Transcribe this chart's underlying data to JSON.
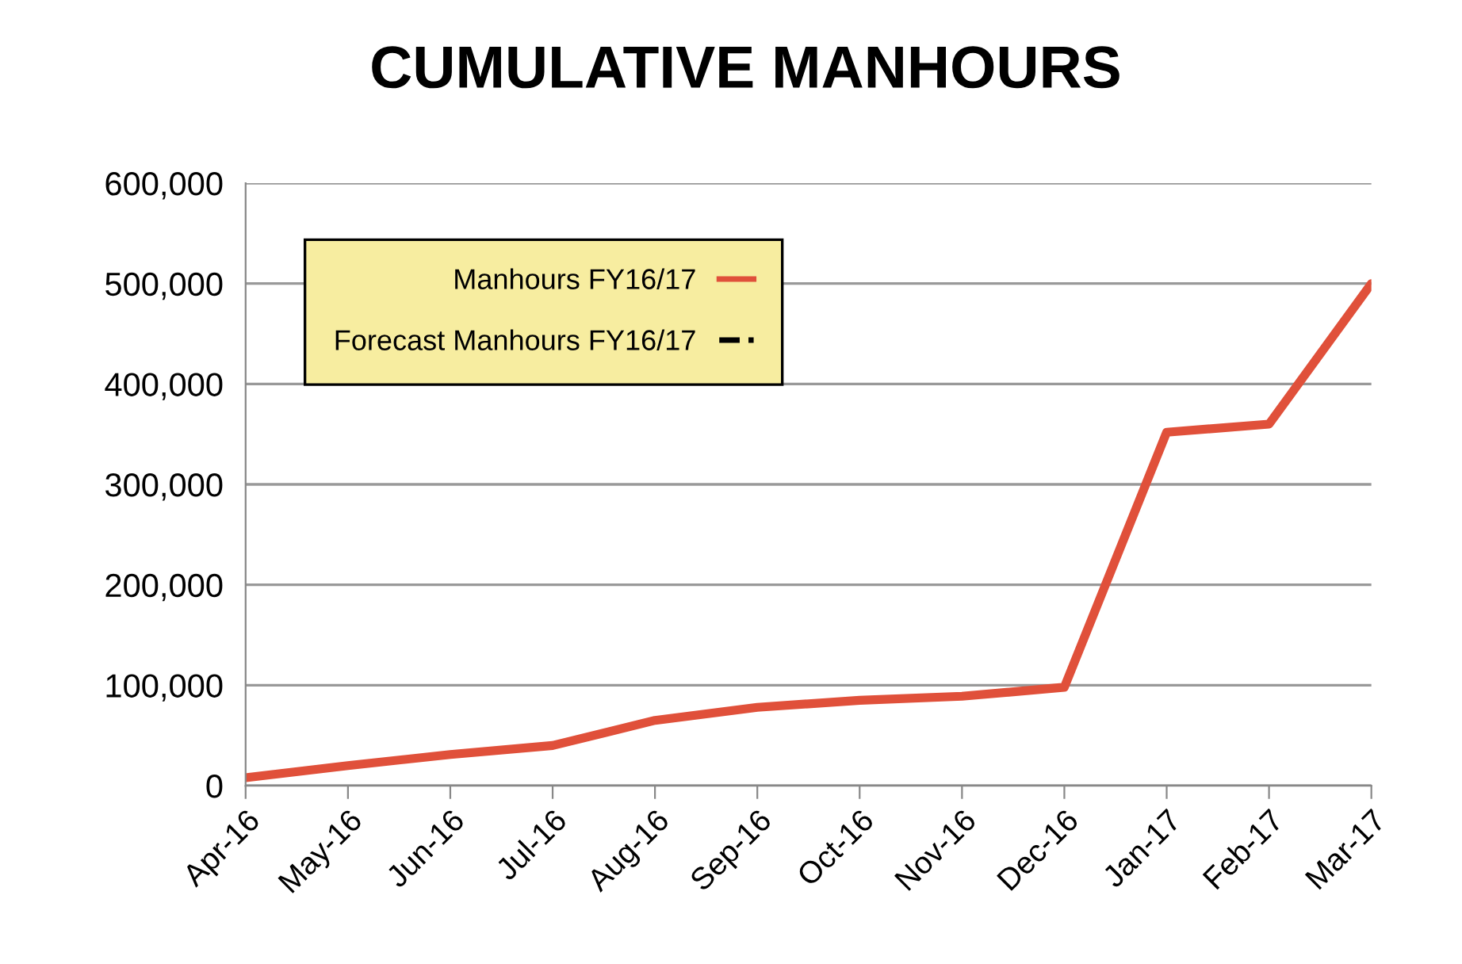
{
  "chart_data": {
    "type": "line",
    "title": "CUMULATIVE MANHOURS",
    "categories": [
      "Apr-16",
      "May-16",
      "Jun-16",
      "Jul-16",
      "Aug-16",
      "Sep-16",
      "Oct-16",
      "Nov-16",
      "Dec-16",
      "Jan-17",
      "Feb-17",
      "Mar-17"
    ],
    "series": [
      {
        "name": "Manhours FY16/17",
        "color": "#e0503a",
        "line_style": "solid",
        "values": [
          8000,
          20000,
          31000,
          40000,
          65000,
          78000,
          85000,
          89000,
          98000,
          352000,
          360000,
          500000
        ]
      },
      {
        "name": "Forecast Manhours FY16/17",
        "color": "#000000",
        "line_style": "dashed",
        "values": [
          null,
          null,
          null,
          null,
          null,
          null,
          null,
          null,
          null,
          null,
          null,
          null
        ]
      }
    ],
    "ylim": [
      0,
      600000
    ],
    "yticks": [
      {
        "value": 0,
        "label": "0"
      },
      {
        "value": 100000,
        "label": "100,000"
      },
      {
        "value": 200000,
        "label": "200,000"
      },
      {
        "value": 300000,
        "label": "300,000"
      },
      {
        "value": 400000,
        "label": "400,000"
      },
      {
        "value": 500000,
        "label": "500,000"
      },
      {
        "value": 600000,
        "label": "600,000"
      }
    ],
    "grid": "y",
    "legend": "top left",
    "marker": "none"
  }
}
